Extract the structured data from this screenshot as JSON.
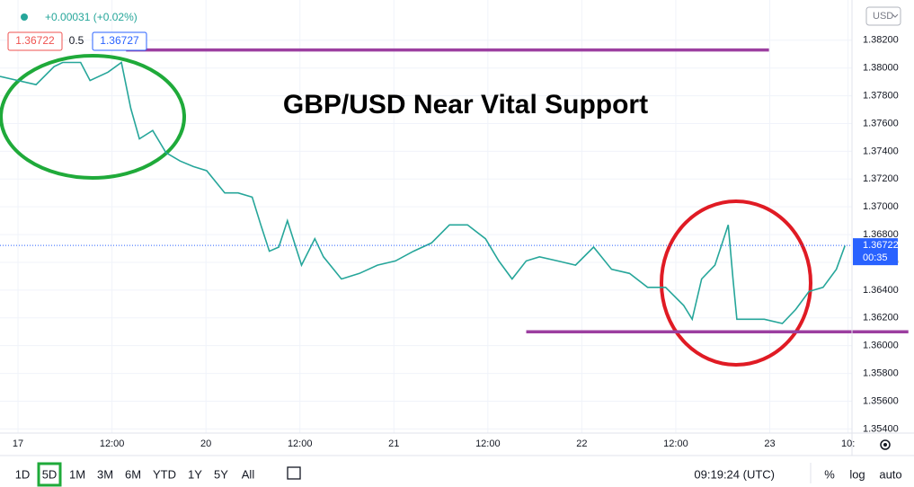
{
  "chart_data": {
    "type": "line",
    "title": "GBP/USD Near Vital Support",
    "x": [
      -2.3,
      0,
      2.3,
      4.6,
      5.7,
      8.0,
      9.2,
      11.5,
      13.2,
      14.4,
      15.5,
      17.2,
      18.9,
      20.7,
      22.4,
      24.1,
      26.4,
      28.1,
      29.9,
      31.0,
      32.1,
      33.3,
      34.4,
      36.2,
      37.9,
      39.0,
      41.3,
      43.6,
      45.9,
      48.2,
      50.5,
      52.8,
      55.1,
      57.4,
      59.7,
      61.4,
      63.1,
      64.9,
      66.6,
      68.9,
      71.2,
      73.5,
      75.8,
      78.1,
      80.4,
      82.7,
      85.0,
      86.1,
      87.3,
      89.0,
      90.7,
      91.3,
      91.8,
      93.6,
      95.3,
      97.6,
      99.3,
      101.0,
      102.8,
      104.5,
      105.6
    ],
    "values": [
      1.3794,
      1.3791,
      1.3788,
      1.3801,
      1.3804,
      1.3804,
      1.3791,
      1.3797,
      1.3804,
      1.3771,
      1.3749,
      1.3755,
      1.3739,
      1.3733,
      1.3729,
      1.3726,
      1.371,
      1.371,
      1.3707,
      1.3687,
      1.3668,
      1.3671,
      1.369,
      1.3658,
      1.3677,
      1.3664,
      1.3648,
      1.3652,
      1.3658,
      1.3661,
      1.3668,
      1.3674,
      1.3687,
      1.3687,
      1.3677,
      1.3661,
      1.3648,
      1.3661,
      1.3664,
      1.3661,
      1.3658,
      1.3671,
      1.3655,
      1.3652,
      1.3642,
      1.3642,
      1.3629,
      1.3619,
      1.3648,
      1.3658,
      1.3687,
      1.3648,
      1.3619,
      1.3619,
      1.3619,
      1.3616,
      1.3626,
      1.3639,
      1.3642,
      1.3655,
      1.3672
    ],
    "color": "#26a69a",
    "xlim": [
      -2.3,
      106.5
    ],
    "xticks": [
      {
        "value": 0,
        "label": "17"
      },
      {
        "value": 12,
        "label": "12:00"
      },
      {
        "value": 24,
        "label": "20"
      },
      {
        "value": 36,
        "label": "12:00"
      },
      {
        "value": 48,
        "label": "21"
      },
      {
        "value": 60,
        "label": "12:00"
      },
      {
        "value": 72,
        "label": "22"
      },
      {
        "value": 84,
        "label": "12:00"
      },
      {
        "value": 96,
        "label": "23"
      },
      {
        "value": 106,
        "label": "10:"
      }
    ],
    "ylim": [
      1.3537,
      1.3849
    ],
    "yticks": [
      {
        "value": 1.354,
        "label": "1.35400"
      },
      {
        "value": 1.356,
        "label": "1.35600"
      },
      {
        "value": 1.358,
        "label": "1.35800"
      },
      {
        "value": 1.36,
        "label": "1.36000"
      },
      {
        "value": 1.362,
        "label": "1.36200"
      },
      {
        "value": 1.364,
        "label": "1.36400"
      },
      {
        "value": 1.366,
        "label": "1.36600"
      },
      {
        "value": 1.368,
        "label": "1.36800"
      },
      {
        "value": 1.37,
        "label": "1.37000"
      },
      {
        "value": 1.372,
        "label": "1.37200"
      },
      {
        "value": 1.374,
        "label": "1.37400"
      },
      {
        "value": 1.376,
        "label": "1.37600"
      },
      {
        "value": 1.378,
        "label": "1.37800"
      },
      {
        "value": 1.38,
        "label": "1.38000"
      },
      {
        "value": 1.382,
        "label": "1.38200"
      }
    ],
    "grid": true,
    "levels": [
      {
        "value": 1.3813,
        "x": [
          13.8,
          95.9
        ],
        "color": "#9c3fa0"
      },
      {
        "value": 1.361,
        "x": [
          64.9,
          113.7
        ],
        "color": "#9c3fa0"
      }
    ],
    "last_price": {
      "value": 1.36722,
      "label": "1.36722",
      "color": "#2962ff"
    }
  },
  "ui": {
    "change": "+0.00031 (+0.02%)",
    "bid": "1.36722",
    "spread": "0.5",
    "ask": "1.36727",
    "currency": "USD",
    "countdown": "00:35",
    "ranges": [
      "1D",
      "5D",
      "1M",
      "3M",
      "6M",
      "YTD",
      "1Y",
      "5Y",
      "All"
    ],
    "clock": "09:19:24 (UTC)",
    "options": [
      "%",
      "log",
      "auto"
    ]
  }
}
